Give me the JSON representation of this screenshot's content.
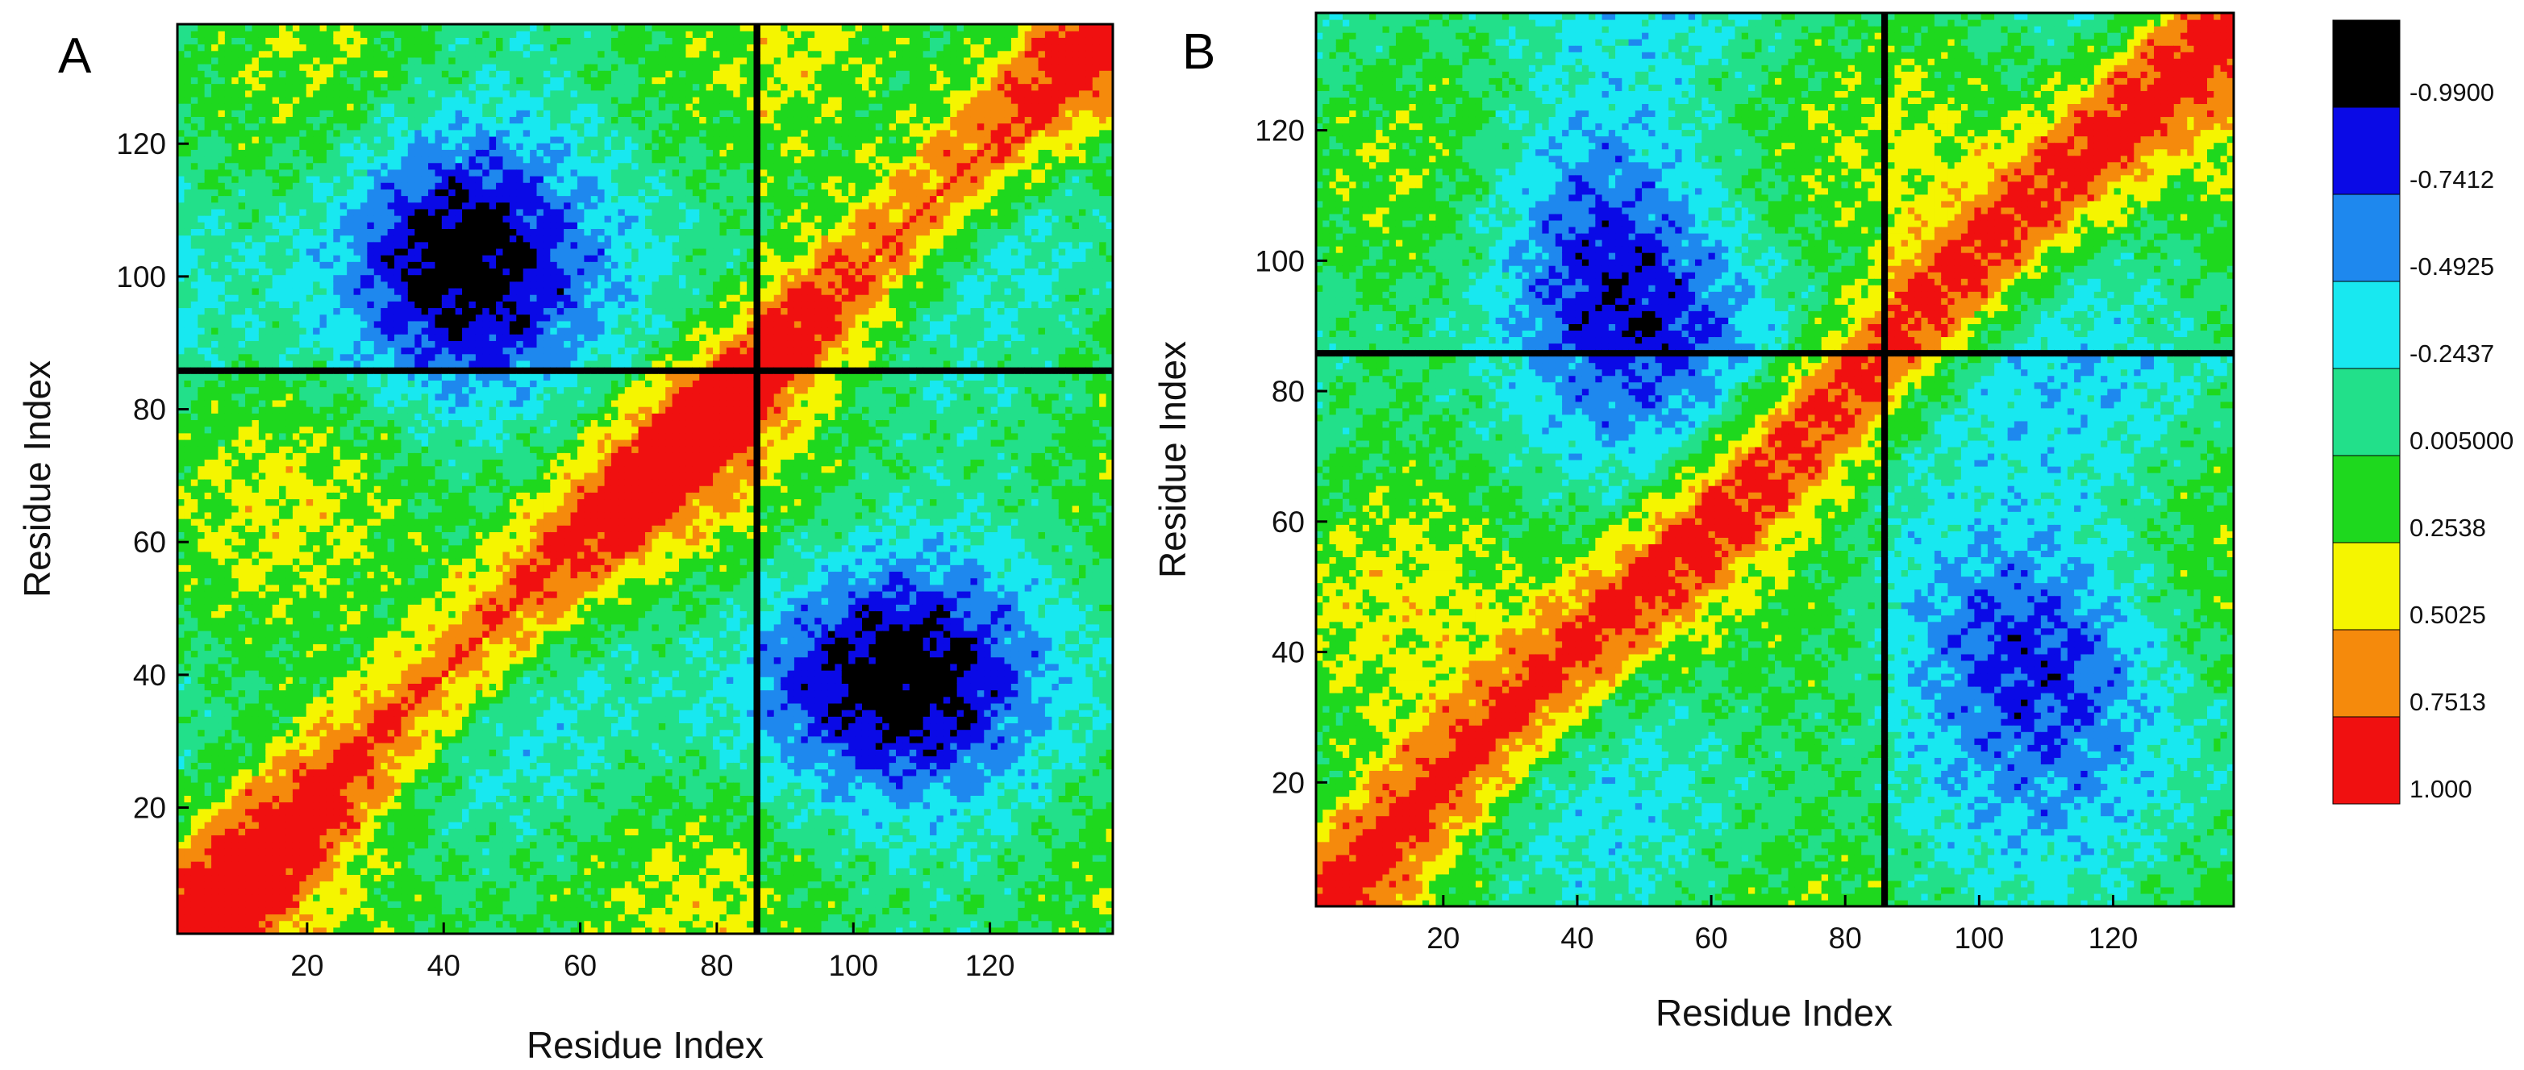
{
  "chart_data": [
    {
      "type": "heatmap",
      "panel": "A",
      "title": "",
      "xlabel": "Residue Index",
      "ylabel": "Residue Index",
      "xlim": [
        1,
        138
      ],
      "ylim": [
        1,
        138
      ],
      "xticks": [
        20,
        40,
        60,
        80,
        100,
        120
      ],
      "yticks": [
        20,
        40,
        60,
        80,
        100,
        120
      ],
      "break_residue": 86,
      "description_values": "dynamic cross-correlation map, values in [-1, 1]"
    },
    {
      "type": "heatmap",
      "panel": "B",
      "title": "",
      "xlabel": "Residue Index",
      "ylabel": "Residue Index",
      "xlim": [
        1,
        138
      ],
      "ylim": [
        1,
        138
      ],
      "xticks": [
        20,
        40,
        60,
        80,
        100,
        120
      ],
      "yticks": [
        20,
        40,
        60,
        80,
        100,
        120
      ],
      "break_residue": 86,
      "description_values": "dynamic cross-correlation map, values in [-1, 1]"
    }
  ],
  "legend": {
    "levels": [
      "-0.9900",
      "-0.7412",
      "-0.4925",
      "-0.2437",
      "0.005000",
      "0.2538",
      "0.5025",
      "0.7513",
      "1.000"
    ],
    "colors": [
      "#000000",
      "#0a0ae6",
      "#1e88ee",
      "#18e8f0",
      "#22e08a",
      "#1ed81e",
      "#f5f500",
      "#f58a0c",
      "#f01010"
    ]
  }
}
